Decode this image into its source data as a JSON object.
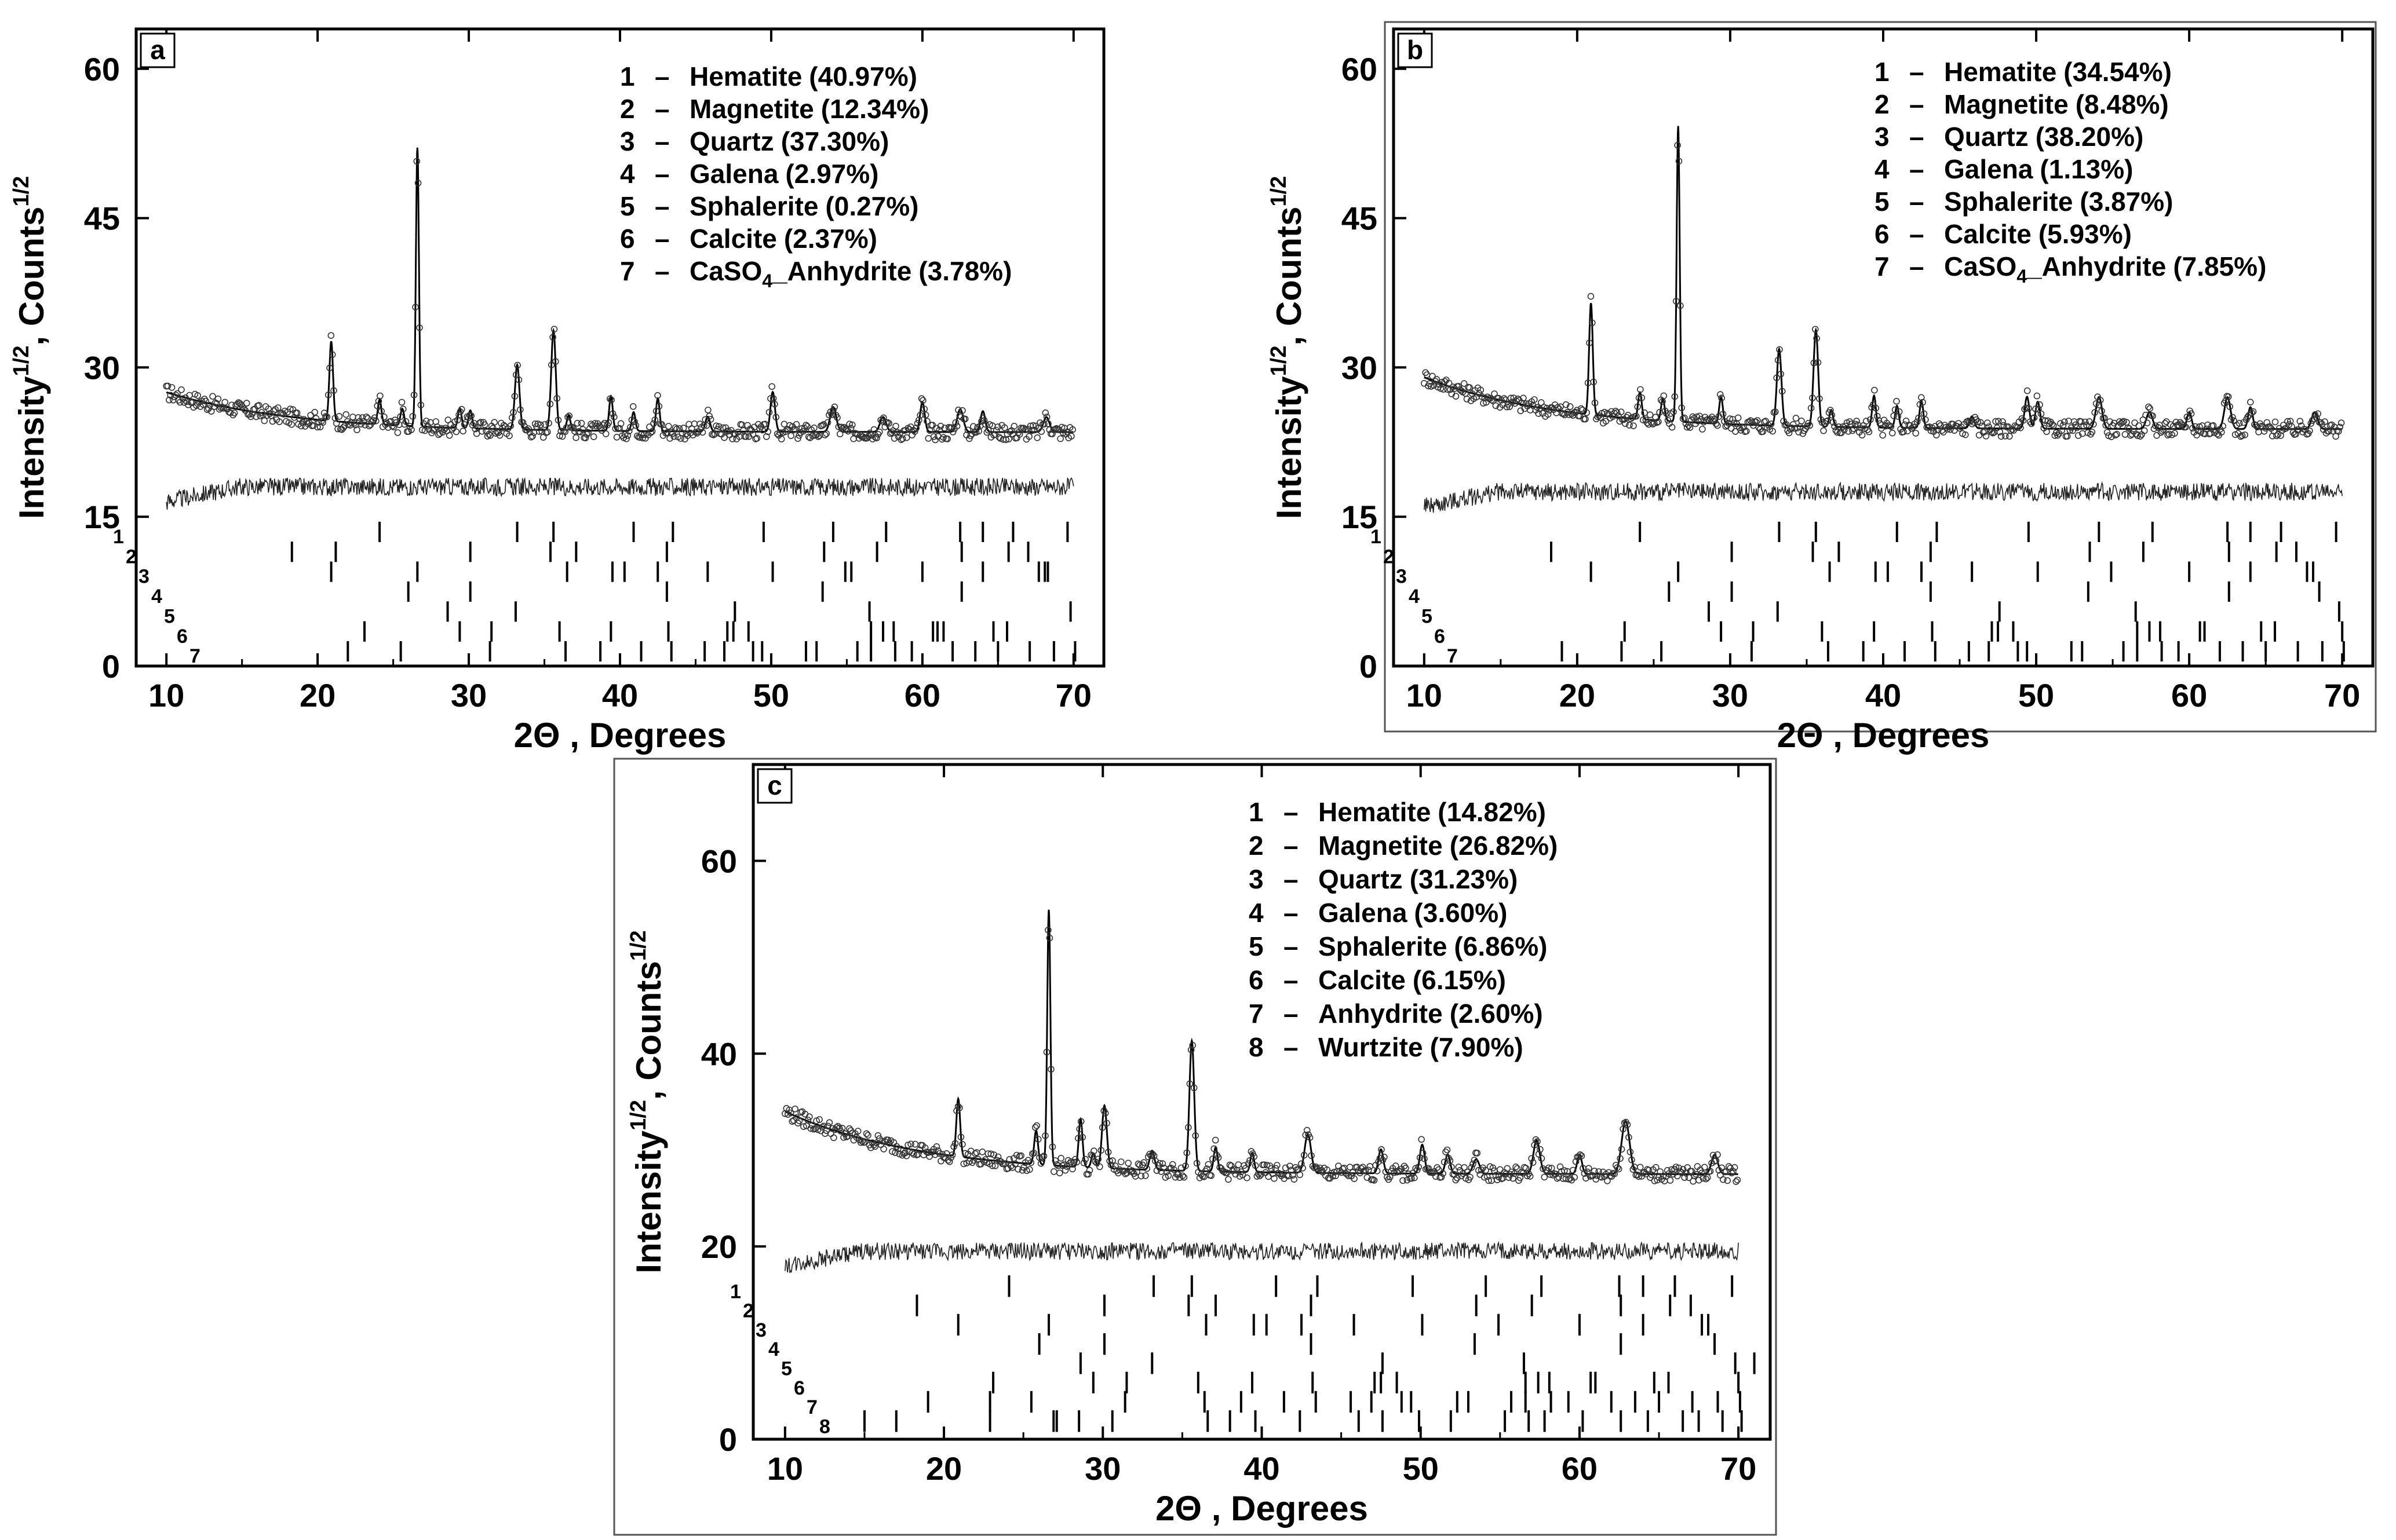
{
  "chart_data": [
    {
      "type": "scatter",
      "panel_label": "a",
      "xlabel": "2Θ , Degrees",
      "ylabel": "Intensity",
      "ylabel_sup": "1/2",
      "ylabel_mid": ", Counts",
      "xlim": [
        8,
        72
      ],
      "ylim": [
        0,
        64
      ],
      "xticks": [
        10,
        20,
        30,
        40,
        50,
        60,
        70
      ],
      "yticks": [
        0,
        15,
        30,
        45,
        60
      ],
      "legend": [
        {
          "num": "1",
          "name": "Hematite",
          "pct": "(40.97%)"
        },
        {
          "num": "2",
          "name": "Magnetite",
          "pct": "(12.34%)"
        },
        {
          "num": "3",
          "name": "Quartz",
          "pct": "(37.30%)"
        },
        {
          "num": "4",
          "name": "Galena",
          "pct": "(2.97%)"
        },
        {
          "num": "5",
          "name": "Sphalerite",
          "pct": "(0.27%)"
        },
        {
          "num": "6",
          "name": "Calcite",
          "pct": "(2.37%)"
        },
        {
          "num": "7",
          "name": "CaSO",
          "sub": "4",
          "name2": "_Anhydrite",
          "pct": "(3.78%)"
        }
      ],
      "baseline_start": 27.5,
      "baseline_min": 23.5,
      "difference_offset": 18,
      "tick_rows_top": 14.5,
      "tick_row_step": 2,
      "peaks": [
        [
          20.9,
          31.5,
          0.12
        ],
        [
          24.1,
          26,
          0.12
        ],
        [
          25.6,
          25.2,
          0.12
        ],
        [
          26.6,
          51.5,
          0.1
        ],
        [
          29.4,
          25.5,
          0.12
        ],
        [
          30.1,
          25.3,
          0.12
        ],
        [
          33.2,
          30,
          0.15
        ],
        [
          35.6,
          33.5,
          0.15
        ],
        [
          36.6,
          25,
          0.12
        ],
        [
          39.4,
          27,
          0.12
        ],
        [
          40.9,
          25.4,
          0.12
        ],
        [
          42.5,
          26.8,
          0.12
        ],
        [
          45.8,
          25,
          0.15
        ],
        [
          50.1,
          27.5,
          0.15
        ],
        [
          54.1,
          26,
          0.2
        ],
        [
          57.4,
          25,
          0.2
        ],
        [
          60,
          26.5,
          0.15
        ],
        [
          62.5,
          25.8,
          0.2
        ],
        [
          64,
          25.6,
          0.15
        ],
        [
          68.2,
          25,
          0.2
        ]
      ],
      "phase_ticks": [
        [
          24.1,
          33.2,
          35.6,
          40.9,
          43.5,
          49.5,
          54.1,
          57.6,
          62.5,
          64.0,
          66.0,
          69.6
        ],
        [
          18.3,
          21.2,
          30.1,
          35.4,
          37.1,
          43.1,
          53.5,
          57.0,
          62.6,
          65.7,
          67.0
        ],
        [
          20.9,
          26.6,
          36.5,
          39.5,
          40.3,
          42.5,
          45.8,
          50.1,
          54.9,
          55.3,
          60.0,
          64.0,
          67.7,
          68.1,
          68.3
        ],
        [
          26.0,
          30.1,
          43.1,
          53.4,
          62.6
        ],
        [
          28.6,
          33.1,
          47.6,
          56.5,
          69.8
        ],
        [
          23.1,
          29.4,
          31.5,
          36.0,
          39.4,
          43.2,
          47.1,
          47.5,
          48.5,
          56.6,
          57.4,
          58.1,
          60.7,
          61.0,
          61.4,
          64.7,
          65.6
        ],
        [
          22.0,
          25.5,
          31.4,
          36.4,
          38.7,
          41.4,
          43.4,
          45.6,
          46.9,
          48.8,
          49.4,
          52.3,
          53.0,
          55.7,
          56.6,
          58.2,
          59.3,
          62.0,
          63.5,
          65.0,
          67.1,
          68.7,
          70.1
        ]
      ]
    },
    {
      "type": "scatter",
      "panel_label": "b",
      "xlabel": "2Θ , Degrees",
      "ylabel": "Intensity",
      "ylabel_sup": "1/2",
      "ylabel_mid": ", Counts",
      "xlim": [
        8,
        72
      ],
      "ylim": [
        0,
        64
      ],
      "xticks": [
        10,
        20,
        30,
        40,
        50,
        60,
        70
      ],
      "yticks": [
        0,
        15,
        30,
        45,
        60
      ],
      "legend": [
        {
          "num": "1",
          "name": "Hematite",
          "pct": "(34.54%)"
        },
        {
          "num": "2",
          "name": "Magnetite",
          "pct": "(8.48%)"
        },
        {
          "num": "3",
          "name": "Quartz",
          "pct": "(38.20%)"
        },
        {
          "num": "4",
          "name": "Galena",
          "pct": "(1.13%)"
        },
        {
          "num": "5",
          "name": "Sphalerite",
          "pct": "(3.87%)"
        },
        {
          "num": "6",
          "name": "Calcite",
          "pct": "(5.93%)"
        },
        {
          "num": "7",
          "name": "CaSO",
          "sub": "4",
          "name2": "_Anhydrite",
          "pct": "(7.85%)"
        }
      ],
      "baseline_start": 29,
      "baseline_min": 23.8,
      "difference_offset": 17.5,
      "tick_rows_top": 14.5,
      "tick_row_step": 2,
      "peaks": [
        [
          20.9,
          35,
          0.12
        ],
        [
          24.1,
          26.5,
          0.12
        ],
        [
          25.6,
          26,
          0.12
        ],
        [
          26.6,
          53.5,
          0.1
        ],
        [
          29.4,
          26.5,
          0.12
        ],
        [
          33.2,
          31.5,
          0.15
        ],
        [
          35.6,
          33.5,
          0.15
        ],
        [
          36.6,
          25.5,
          0.12
        ],
        [
          39.4,
          27,
          0.12
        ],
        [
          40.9,
          26,
          0.12
        ],
        [
          42.5,
          26.5,
          0.12
        ],
        [
          45.8,
          25,
          0.15
        ],
        [
          49.4,
          27,
          0.15
        ],
        [
          50.1,
          26.5,
          0.15
        ],
        [
          54.1,
          27,
          0.2
        ],
        [
          57.4,
          25.5,
          0.2
        ],
        [
          60,
          25.5,
          0.15
        ],
        [
          62.5,
          27,
          0.2
        ],
        [
          64,
          26,
          0.15
        ],
        [
          68.2,
          25.5,
          0.2
        ]
      ],
      "phase_ticks": [
        [
          24.1,
          33.2,
          35.6,
          40.9,
          43.5,
          49.5,
          54.1,
          57.6,
          62.5,
          64.0,
          66.0,
          69.6
        ],
        [
          18.3,
          30.1,
          35.4,
          37.1,
          43.1,
          53.5,
          57.0,
          62.6,
          65.7,
          67.0
        ],
        [
          20.9,
          26.6,
          36.5,
          39.5,
          40.3,
          42.5,
          45.8,
          50.1,
          54.9,
          60.0,
          64.0,
          67.7,
          68.1
        ],
        [
          26.0,
          30.1,
          43.1,
          53.4,
          62.6,
          68.5
        ],
        [
          28.6,
          33.1,
          47.6,
          56.5,
          69.8
        ],
        [
          23.1,
          29.4,
          31.5,
          36.0,
          39.4,
          43.2,
          47.1,
          47.5,
          48.5,
          56.6,
          57.4,
          58.1,
          60.7,
          61.0,
          64.7,
          65.6,
          70.0
        ],
        [
          19.0,
          22.9,
          25.5,
          31.4,
          36.4,
          38.7,
          41.4,
          43.4,
          45.6,
          46.9,
          48.8,
          49.4,
          52.3,
          53.0,
          55.7,
          56.6,
          58.2,
          59.3,
          62.0,
          63.5,
          65.0,
          67.1,
          68.7,
          70.1
        ]
      ]
    },
    {
      "type": "scatter",
      "panel_label": "c",
      "xlabel": "2Θ , Degrees",
      "ylabel": "Intensity",
      "ylabel_sup": "1/2",
      "ylabel_mid": ", Counts",
      "xlim": [
        8,
        72
      ],
      "ylim": [
        0,
        70
      ],
      "xticks": [
        10,
        20,
        30,
        40,
        50,
        60,
        70
      ],
      "yticks": [
        0,
        20,
        40,
        60
      ],
      "legend": [
        {
          "num": "1",
          "name": "Hematite",
          "pct": "(14.82%)"
        },
        {
          "num": "2",
          "name": "Magnetite",
          "pct": "(26.82%)"
        },
        {
          "num": "3",
          "name": "Quartz",
          "pct": "(31.23%)"
        },
        {
          "num": "4",
          "name": "Galena",
          "pct": "(3.60%)"
        },
        {
          "num": "5",
          "name": "Sphalerite",
          "pct": "(6.86%)"
        },
        {
          "num": "6",
          "name": "Calcite",
          "pct": "(6.15%)"
        },
        {
          "num": "7",
          "name": "Anhydrite",
          "pct": "(2.60%)"
        },
        {
          "num": "8",
          "name": "Wurtzite",
          "pct": "(7.90%)"
        }
      ],
      "baseline_start": 34,
      "baseline_min": 27.5,
      "difference_offset": 19.5,
      "tick_rows_top": 17,
      "tick_row_step": 2,
      "peaks": [
        [
          20.9,
          33.5,
          0.12
        ],
        [
          25.8,
          31,
          0.12
        ],
        [
          26.6,
          54,
          0.1
        ],
        [
          28.6,
          32.5,
          0.12
        ],
        [
          29.4,
          29,
          0.12
        ],
        [
          30.1,
          34,
          0.15
        ],
        [
          33.1,
          29.5,
          0.15
        ],
        [
          35.6,
          41,
          0.15
        ],
        [
          37.1,
          30,
          0.12
        ],
        [
          39.4,
          29.5,
          0.12
        ],
        [
          42.9,
          31.5,
          0.2
        ],
        [
          47.5,
          30,
          0.15
        ],
        [
          50.1,
          30.5,
          0.15
        ],
        [
          51.7,
          29.5,
          0.15
        ],
        [
          53.5,
          29,
          0.2
        ],
        [
          57.3,
          31,
          0.2
        ],
        [
          60,
          29.5,
          0.15
        ],
        [
          62.9,
          33,
          0.25
        ],
        [
          68.5,
          29.5,
          0.2
        ]
      ],
      "phase_ticks": [
        [
          24.1,
          33.2,
          35.6,
          40.9,
          43.5,
          49.5,
          54.1,
          57.6,
          62.5,
          64.0,
          66.0,
          69.6
        ],
        [
          18.3,
          30.1,
          35.4,
          37.1,
          43.1,
          53.5,
          57.0,
          62.6,
          65.7,
          67.0
        ],
        [
          20.9,
          26.6,
          36.5,
          39.5,
          40.3,
          42.5,
          45.8,
          50.1,
          54.9,
          60.0,
          64.0,
          67.7,
          68.1
        ],
        [
          26.0,
          30.1,
          43.1,
          53.4,
          62.6,
          68.5
        ],
        [
          28.6,
          33.1,
          47.6,
          56.5,
          69.8,
          71.0
        ],
        [
          23.1,
          29.4,
          31.5,
          36.0,
          39.4,
          43.2,
          47.1,
          47.5,
          48.5,
          56.6,
          57.4,
          58.1,
          60.7,
          61.0,
          64.7,
          65.6,
          70.0
        ],
        [
          19.0,
          22.9,
          25.5,
          31.4,
          36.4,
          38.7,
          41.4,
          43.4,
          45.6,
          46.9,
          48.8,
          49.4,
          52.3,
          53.0,
          55.7,
          56.6,
          58.2,
          59.3,
          62.0,
          63.5,
          65.0,
          67.1,
          68.7,
          70.1
        ],
        [
          15.0,
          17.0,
          22.9,
          26.9,
          27.1,
          28.5,
          30.6,
          36.6,
          38.0,
          39.6,
          42.4,
          46.1,
          47.6,
          49.9,
          51.9,
          55.3,
          56.8,
          57.8,
          60.2,
          62.6,
          64.3,
          66.5,
          67.5,
          69.0,
          70.2
        ]
      ]
    }
  ]
}
